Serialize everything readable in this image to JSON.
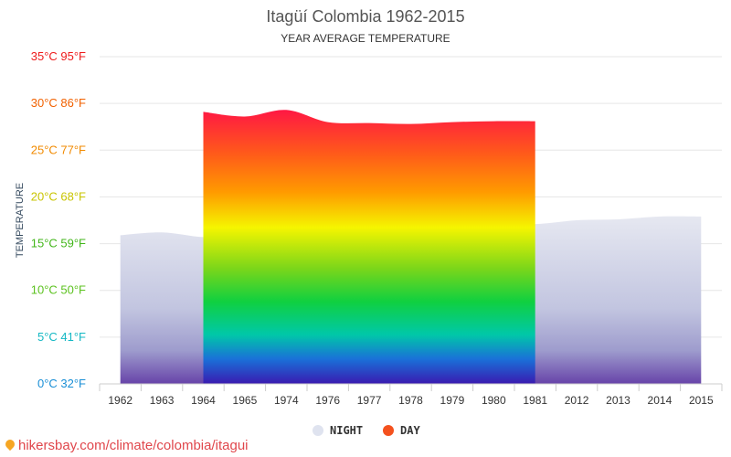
{
  "chart_data": {
    "type": "area",
    "title": "Itagüí Colombia 1962-2015",
    "subtitle": "YEAR AVERAGE TEMPERATURE",
    "ylabel": "TEMPERATURE",
    "xlabel": "",
    "categories": [
      "1962",
      "1963",
      "1964",
      "1965",
      "1974",
      "1976",
      "1977",
      "1978",
      "1979",
      "1980",
      "1981",
      "2012",
      "2013",
      "2014",
      "2015"
    ],
    "ylim": [
      0,
      35
    ],
    "y_ticks": [
      {
        "value": 0,
        "label": "0°C 32°F",
        "color": "#1a8fd6"
      },
      {
        "value": 5,
        "label": "5°C 41°F",
        "color": "#14b8c4"
      },
      {
        "value": 10,
        "label": "10°C 50°F",
        "color": "#5cc21f"
      },
      {
        "value": 15,
        "label": "15°C 59°F",
        "color": "#42b61a"
      },
      {
        "value": 20,
        "label": "20°C 68°F",
        "color": "#c9c400"
      },
      {
        "value": 25,
        "label": "25°C 77°F",
        "color": "#f18a00"
      },
      {
        "value": 30,
        "label": "30°C 86°F",
        "color": "#f16100"
      },
      {
        "value": 35,
        "label": "35°C 95°F",
        "color": "#ee1b1b"
      }
    ],
    "grid": true,
    "legend_position": "bottom-center",
    "series": [
      {
        "name": "NIGHT",
        "color": "#dfe3ef",
        "values": [
          15.9,
          16.2,
          15.7,
          15.8,
          16.4,
          16.5,
          17.0,
          17.0,
          17.0,
          17.3,
          17.1,
          17.5,
          17.6,
          17.9,
          17.9
        ]
      },
      {
        "name": "DAY",
        "color": "#f4511e",
        "values": [
          null,
          null,
          29.1,
          28.6,
          29.3,
          28.0,
          27.9,
          27.8,
          28.0,
          28.1,
          28.1,
          null,
          null,
          null,
          null
        ]
      }
    ]
  },
  "source": {
    "text": "hikersbay.com/climate/colombia/itagui"
  }
}
